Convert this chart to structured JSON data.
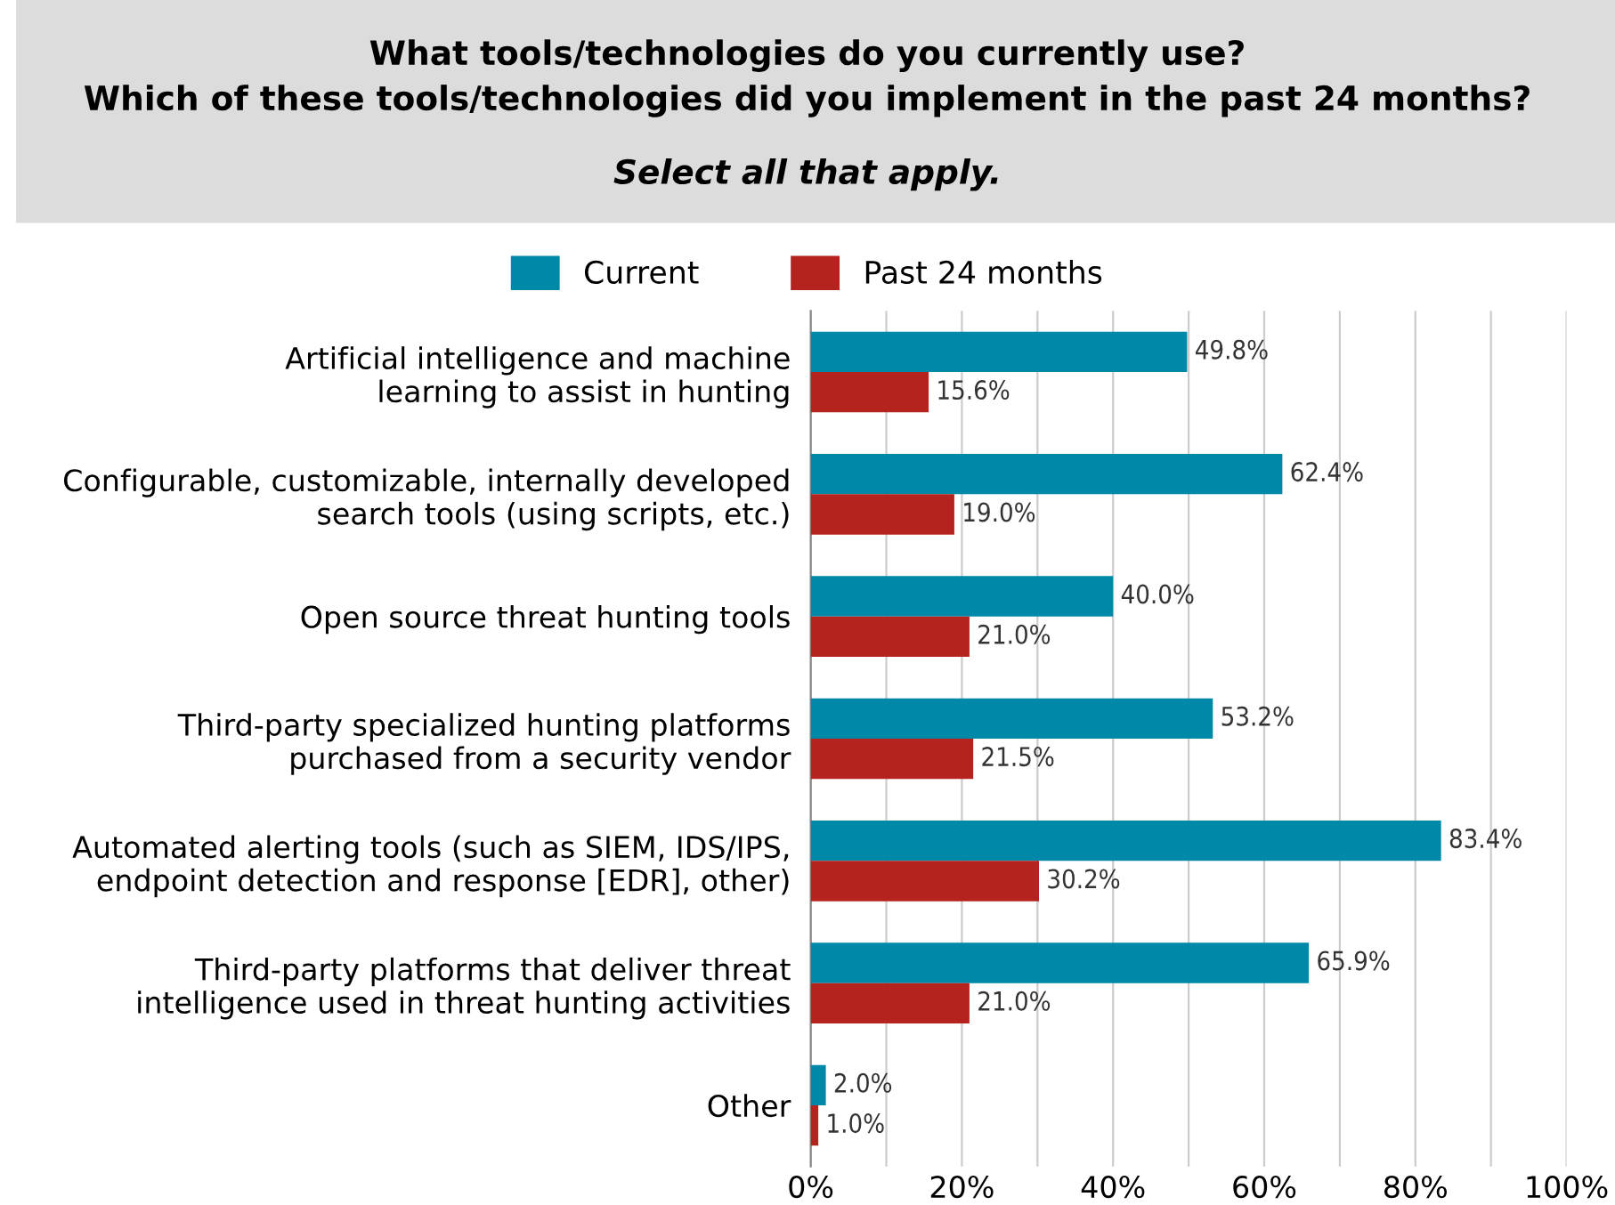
{
  "chart_data": {
    "type": "bar",
    "orientation": "horizontal",
    "title": "What tools/technologies do you currently use?\nWhich of these tools/technologies did you implement in the past 24 months?",
    "subtitle": "Select all that apply.",
    "categories": [
      "Artificial intelligence and machine\nlearning to assist in hunting",
      "Configurable, customizable, internally developed\nsearch tools (using scripts, etc.)",
      "Open source threat hunting tools",
      "Third-party specialized hunting platforms\npurchased from a security vendor",
      "Automated alerting tools (such as SIEM, IDS/IPS,\nendpoint detection and response [EDR], other)",
      "Third-party platforms that deliver threat\nintelligence used in threat hunting activities",
      "Other"
    ],
    "series": [
      {
        "name": "Current",
        "color": "#0088a8",
        "values": [
          49.8,
          62.4,
          40.0,
          53.2,
          83.4,
          65.9,
          2.0
        ],
        "value_labels": [
          "49.8%",
          "62.4%",
          "40.0%",
          "53.2%",
          "83.4%",
          "65.9%",
          "2.0%"
        ]
      },
      {
        "name": "Past 24 months",
        "color": "#b5231f",
        "values": [
          15.6,
          19.0,
          21.0,
          21.5,
          30.2,
          21.0,
          1.0
        ],
        "value_labels": [
          "15.6%",
          "19.0%",
          "21.0%",
          "21.5%",
          "30.2%",
          "21.0%",
          "1.0%"
        ]
      }
    ],
    "xlim": [
      0,
      100
    ],
    "xticks": [
      {
        "value": 0,
        "label": "0%"
      },
      {
        "value": 10,
        "label": null
      },
      {
        "value": 20,
        "label": "20%"
      },
      {
        "value": 30,
        "label": null
      },
      {
        "value": 40,
        "label": "40%"
      },
      {
        "value": 50,
        "label": null
      },
      {
        "value": 60,
        "label": "60%"
      },
      {
        "value": 70,
        "label": null
      },
      {
        "value": 80,
        "label": "80%"
      },
      {
        "value": 90,
        "label": null
      },
      {
        "value": 100,
        "label": "100%"
      }
    ],
    "grid": "x",
    "legend": "top"
  }
}
